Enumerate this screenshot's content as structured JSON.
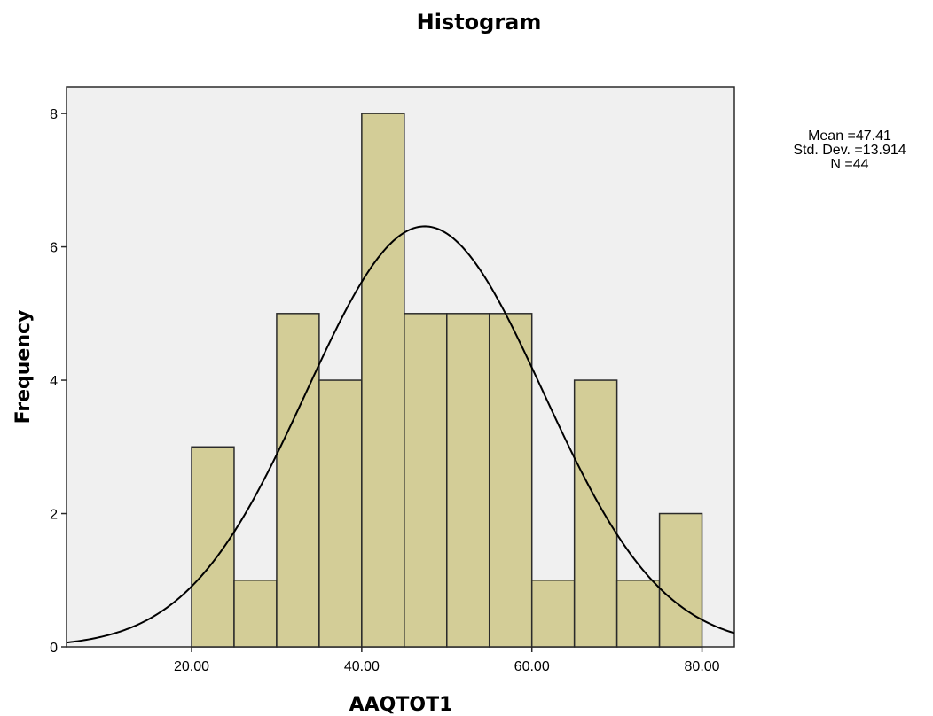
{
  "chart_data": {
    "type": "bar",
    "title": "Histogram",
    "xlabel": "AAQTOT1",
    "ylabel": "Frequency",
    "bin_width": 5,
    "bins": [
      {
        "start": 20,
        "end": 25,
        "count": 3
      },
      {
        "start": 25,
        "end": 30,
        "count": 1
      },
      {
        "start": 30,
        "end": 35,
        "count": 5
      },
      {
        "start": 35,
        "end": 40,
        "count": 4
      },
      {
        "start": 40,
        "end": 45,
        "count": 8
      },
      {
        "start": 45,
        "end": 50,
        "count": 5
      },
      {
        "start": 50,
        "end": 55,
        "count": 5
      },
      {
        "start": 55,
        "end": 60,
        "count": 5
      },
      {
        "start": 60,
        "end": 65,
        "count": 1
      },
      {
        "start": 65,
        "end": 70,
        "count": 4
      },
      {
        "start": 70,
        "end": 75,
        "count": 1
      },
      {
        "start": 75,
        "end": 80,
        "count": 2
      }
    ],
    "xlim": [
      5.3,
      83.8
    ],
    "ylim": [
      0,
      8.4
    ],
    "xticks": [
      20,
      40,
      60,
      80
    ],
    "xtick_labels": [
      "20.00",
      "40.00",
      "60.00",
      "80.00"
    ],
    "yticks": [
      0,
      2,
      4,
      6,
      8
    ],
    "ytick_labels": [
      "0",
      "2",
      "4",
      "6",
      "8"
    ],
    "normal_curve": {
      "mean": 47.41,
      "sd": 13.914,
      "n": 44
    },
    "stats_text": [
      "Mean =47.41",
      "Std. Dev. =13.914",
      "N =44"
    ],
    "colors": {
      "bar_fill": "#d3cd97",
      "bar_stroke": "#2a2a2a",
      "plot_bg": "#f0f0f0",
      "curve": "#000000"
    },
    "grid": false
  }
}
